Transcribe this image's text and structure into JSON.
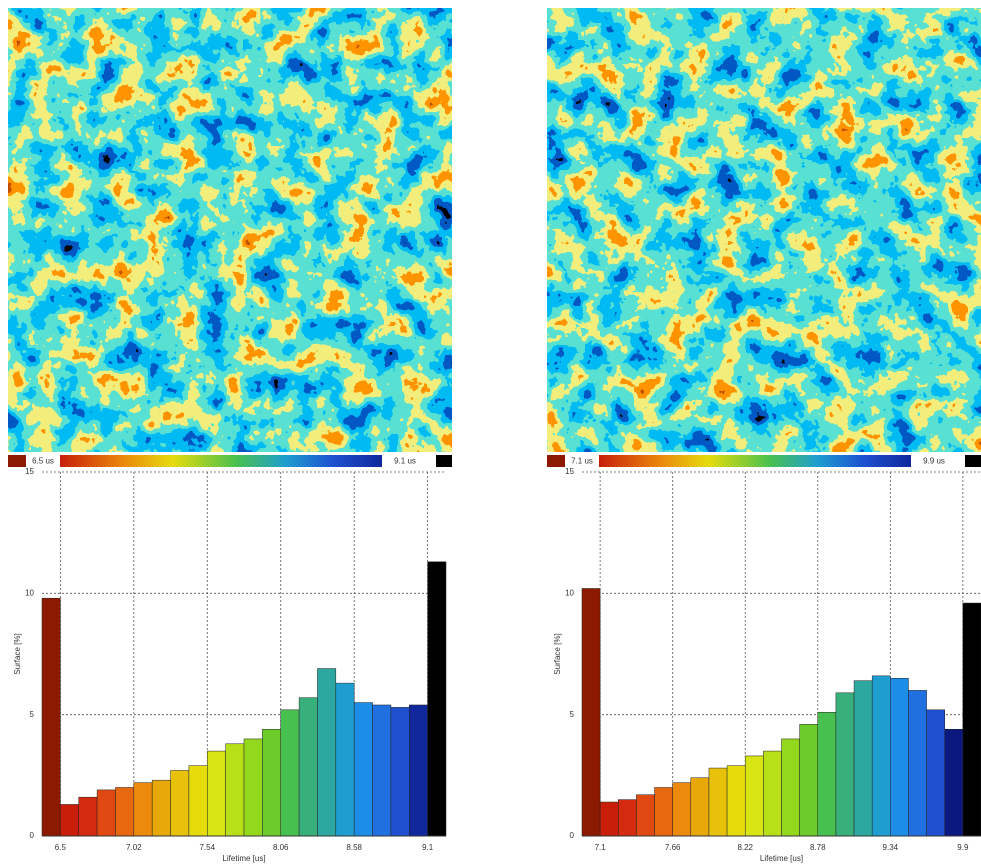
{
  "chart_data": [
    {
      "type": "histogram",
      "colorbar_min_label": "6.5 us",
      "colorbar_max_label": "9.1 us",
      "xlabel": "Lifetime [us]",
      "ylabel": "Surface [%]",
      "bins": [
        6.37,
        6.5,
        6.63,
        6.76,
        6.89,
        7.02,
        7.15,
        7.28,
        7.41,
        7.54,
        7.67,
        7.8,
        7.93,
        8.06,
        8.19,
        8.32,
        8.45,
        8.58,
        8.71,
        8.84,
        8.97,
        9.1,
        9.23
      ],
      "values": [
        9.8,
        1.3,
        1.6,
        1.9,
        2.0,
        2.2,
        2.3,
        2.7,
        2.9,
        3.5,
        3.8,
        4.0,
        4.4,
        5.2,
        5.7,
        6.9,
        6.3,
        5.5,
        5.4,
        5.3,
        5.4,
        11.3
      ],
      "colors": [
        "#8b1a00",
        "#c81e0a",
        "#d42a10",
        "#e04a12",
        "#e8680f",
        "#eb8a0c",
        "#e8a80a",
        "#e8c20a",
        "#e6dc0c",
        "#d8e414",
        "#b8e018",
        "#94d81e",
        "#6ccc2c",
        "#48c050",
        "#38b07c",
        "#2ca8a0",
        "#1e9ed0",
        "#1c8ee8",
        "#2070e0",
        "#1e50d0",
        "#10289c",
        "#000000"
      ],
      "xlim": [
        6.37,
        9.23
      ],
      "xticks": [
        6.5,
        7.02,
        7.54,
        8.06,
        8.58,
        9.1
      ],
      "ylim": [
        0,
        15
      ],
      "yticks": [
        0,
        5,
        10,
        15
      ],
      "grid": true
    },
    {
      "type": "histogram",
      "colorbar_min_label": "7.1 us",
      "colorbar_max_label": "9.9 us",
      "xlabel": "Lifetime [us]",
      "ylabel": "Surface [%]",
      "bins": [
        6.96,
        7.1,
        7.24,
        7.38,
        7.52,
        7.66,
        7.8,
        7.94,
        8.08,
        8.22,
        8.36,
        8.5,
        8.64,
        8.78,
        8.92,
        9.06,
        9.2,
        9.34,
        9.48,
        9.62,
        9.76,
        9.9,
        10.04
      ],
      "values": [
        10.2,
        1.4,
        1.5,
        1.7,
        2.0,
        2.2,
        2.4,
        2.8,
        2.9,
        3.3,
        3.5,
        4.0,
        4.6,
        5.1,
        5.9,
        6.4,
        6.6,
        6.5,
        6.0,
        5.2,
        4.4,
        9.6
      ],
      "colors": [
        "#8b1a00",
        "#c81e0a",
        "#d42a10",
        "#e04a12",
        "#e8680f",
        "#eb8a0c",
        "#e8a80a",
        "#e8c20a",
        "#e6dc0c",
        "#d8e414",
        "#b8e018",
        "#94d81e",
        "#6ccc2c",
        "#48c050",
        "#38b07c",
        "#2ca8a0",
        "#1e9ed0",
        "#1c8ee8",
        "#2070e0",
        "#1e50d0",
        "#0a1880",
        "#000000"
      ],
      "xlim": [
        6.96,
        10.04
      ],
      "xticks": [
        7.1,
        7.66,
        8.22,
        8.78,
        9.34,
        9.9
      ],
      "ylim": [
        0,
        15
      ],
      "yticks": [
        0,
        5,
        10,
        15
      ],
      "grid": true
    }
  ]
}
